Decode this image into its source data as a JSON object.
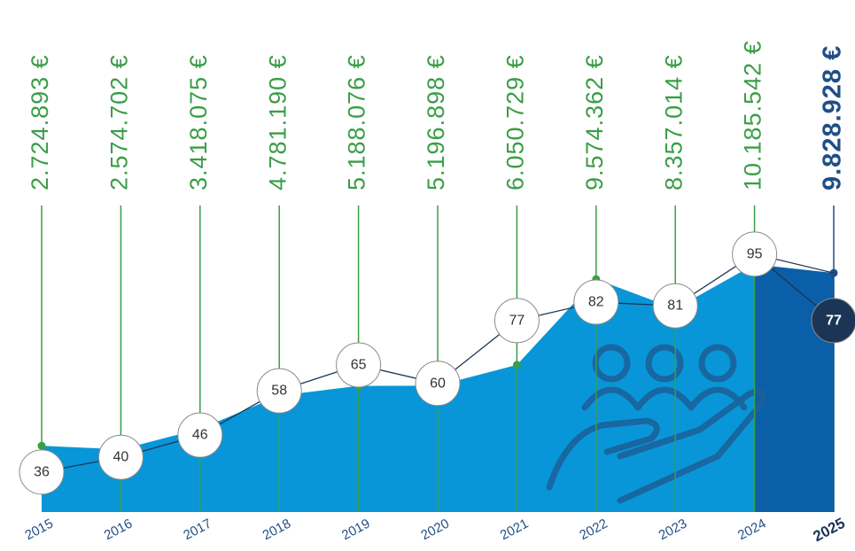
{
  "chart_data": {
    "type": "area",
    "categories": [
      "2015",
      "2016",
      "2017",
      "2018",
      "2019",
      "2020",
      "2021",
      "2022",
      "2023",
      "2024",
      "2025"
    ],
    "series": [
      {
        "color": "#0896d9",
        "values": [
          2724893,
          2574702,
          3418075,
          4781190,
          5188076,
          5196898,
          6050729,
          9574362,
          8357014,
          10185542,
          9828928
        ],
        "value_labels": [
          "2.724.893 €",
          "2.574.702 €",
          "3.418.075 €",
          "4.781.190 €",
          "5.188.076 €",
          "5.196.898 €",
          "6.050.729 €",
          "9.574.362 €",
          "8.357.014 €",
          "10.185.542 €",
          "9.828.928 €"
        ]
      },
      {
        "color": "#ffffff",
        "axis": "y2",
        "values": [
          36,
          40,
          46,
          58,
          65,
          60,
          77,
          82,
          81,
          95,
          77
        ]
      }
    ],
    "ylim": [
      0,
      11000000
    ],
    "y2lim": [
      0,
      100
    ]
  }
}
